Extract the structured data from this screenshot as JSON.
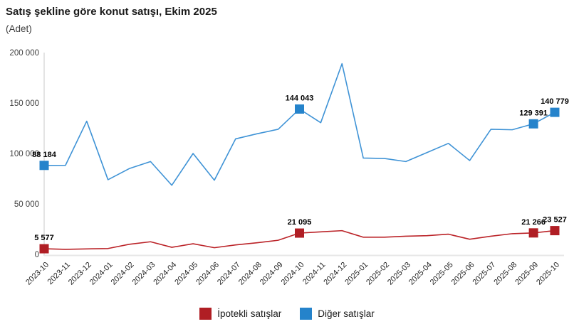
{
  "header": {
    "title": "Satış şekline göre konut satışı, Ekim 2025",
    "subtitle": "(Adet)"
  },
  "legend": {
    "items": [
      {
        "label": "İpotekli satışlar",
        "color": "#b01e24"
      },
      {
        "label": "Diğer satışlar",
        "color": "#2583cb"
      }
    ]
  },
  "chart_data": {
    "type": "line",
    "title": "Satış şekline göre konut satışı, Ekim 2025",
    "unit_label": "(Adet)",
    "grid": false,
    "legend_position": "bottom",
    "ylim": [
      0,
      200000
    ],
    "yticks": [
      {
        "value": 0,
        "label": "0"
      },
      {
        "value": 50000,
        "label": "50 000"
      },
      {
        "value": 100000,
        "label": "100 000"
      },
      {
        "value": 150000,
        "label": "150 000"
      },
      {
        "value": 200000,
        "label": "200 000"
      }
    ],
    "x": [
      "2023-10",
      "2023-11",
      "2023-12",
      "2024-01",
      "2024-02",
      "2024-03",
      "2024-04",
      "2024-05",
      "2024-06",
      "2024-07",
      "2024-08",
      "2024-09",
      "2024-10",
      "2024-11",
      "2024-12",
      "2025-01",
      "2025-02",
      "2025-03",
      "2025-04",
      "2025-05",
      "2025-06",
      "2025-07",
      "2025-08",
      "2025-09",
      "2025-10"
    ],
    "series": [
      {
        "name": "Diğer satışlar",
        "color": "#2583cb",
        "line_color": "#3f93d6",
        "marker": "square",
        "values": [
          88184,
          88200,
          132000,
          74000,
          85000,
          92000,
          68500,
          100000,
          73500,
          114500,
          119500,
          124000,
          144043,
          130500,
          189000,
          95500,
          95000,
          92000,
          101000,
          110000,
          93000,
          124000,
          123500,
          129391,
          140779
        ],
        "labeled_points": [
          {
            "index": 0,
            "label": "88 184"
          },
          {
            "index": 12,
            "label": "144 043"
          },
          {
            "index": 23,
            "label": "129 391"
          },
          {
            "index": 24,
            "label": "140 779"
          }
        ]
      },
      {
        "name": "İpotekli satışlar",
        "color": "#b01e24",
        "line_color": "#bb2328",
        "marker": "square",
        "values": [
          5577,
          5000,
          5400,
          5800,
          10000,
          12500,
          7000,
          10500,
          6600,
          9400,
          11500,
          14000,
          21095,
          22300,
          23500,
          17000,
          17000,
          18000,
          18500,
          20000,
          15000,
          18000,
          20500,
          21266,
          23527
        ],
        "labeled_points": [
          {
            "index": 0,
            "label": "5 577"
          },
          {
            "index": 12,
            "label": "21 095"
          },
          {
            "index": 23,
            "label": "21 266"
          },
          {
            "index": 24,
            "label": "23 527"
          }
        ]
      }
    ]
  }
}
